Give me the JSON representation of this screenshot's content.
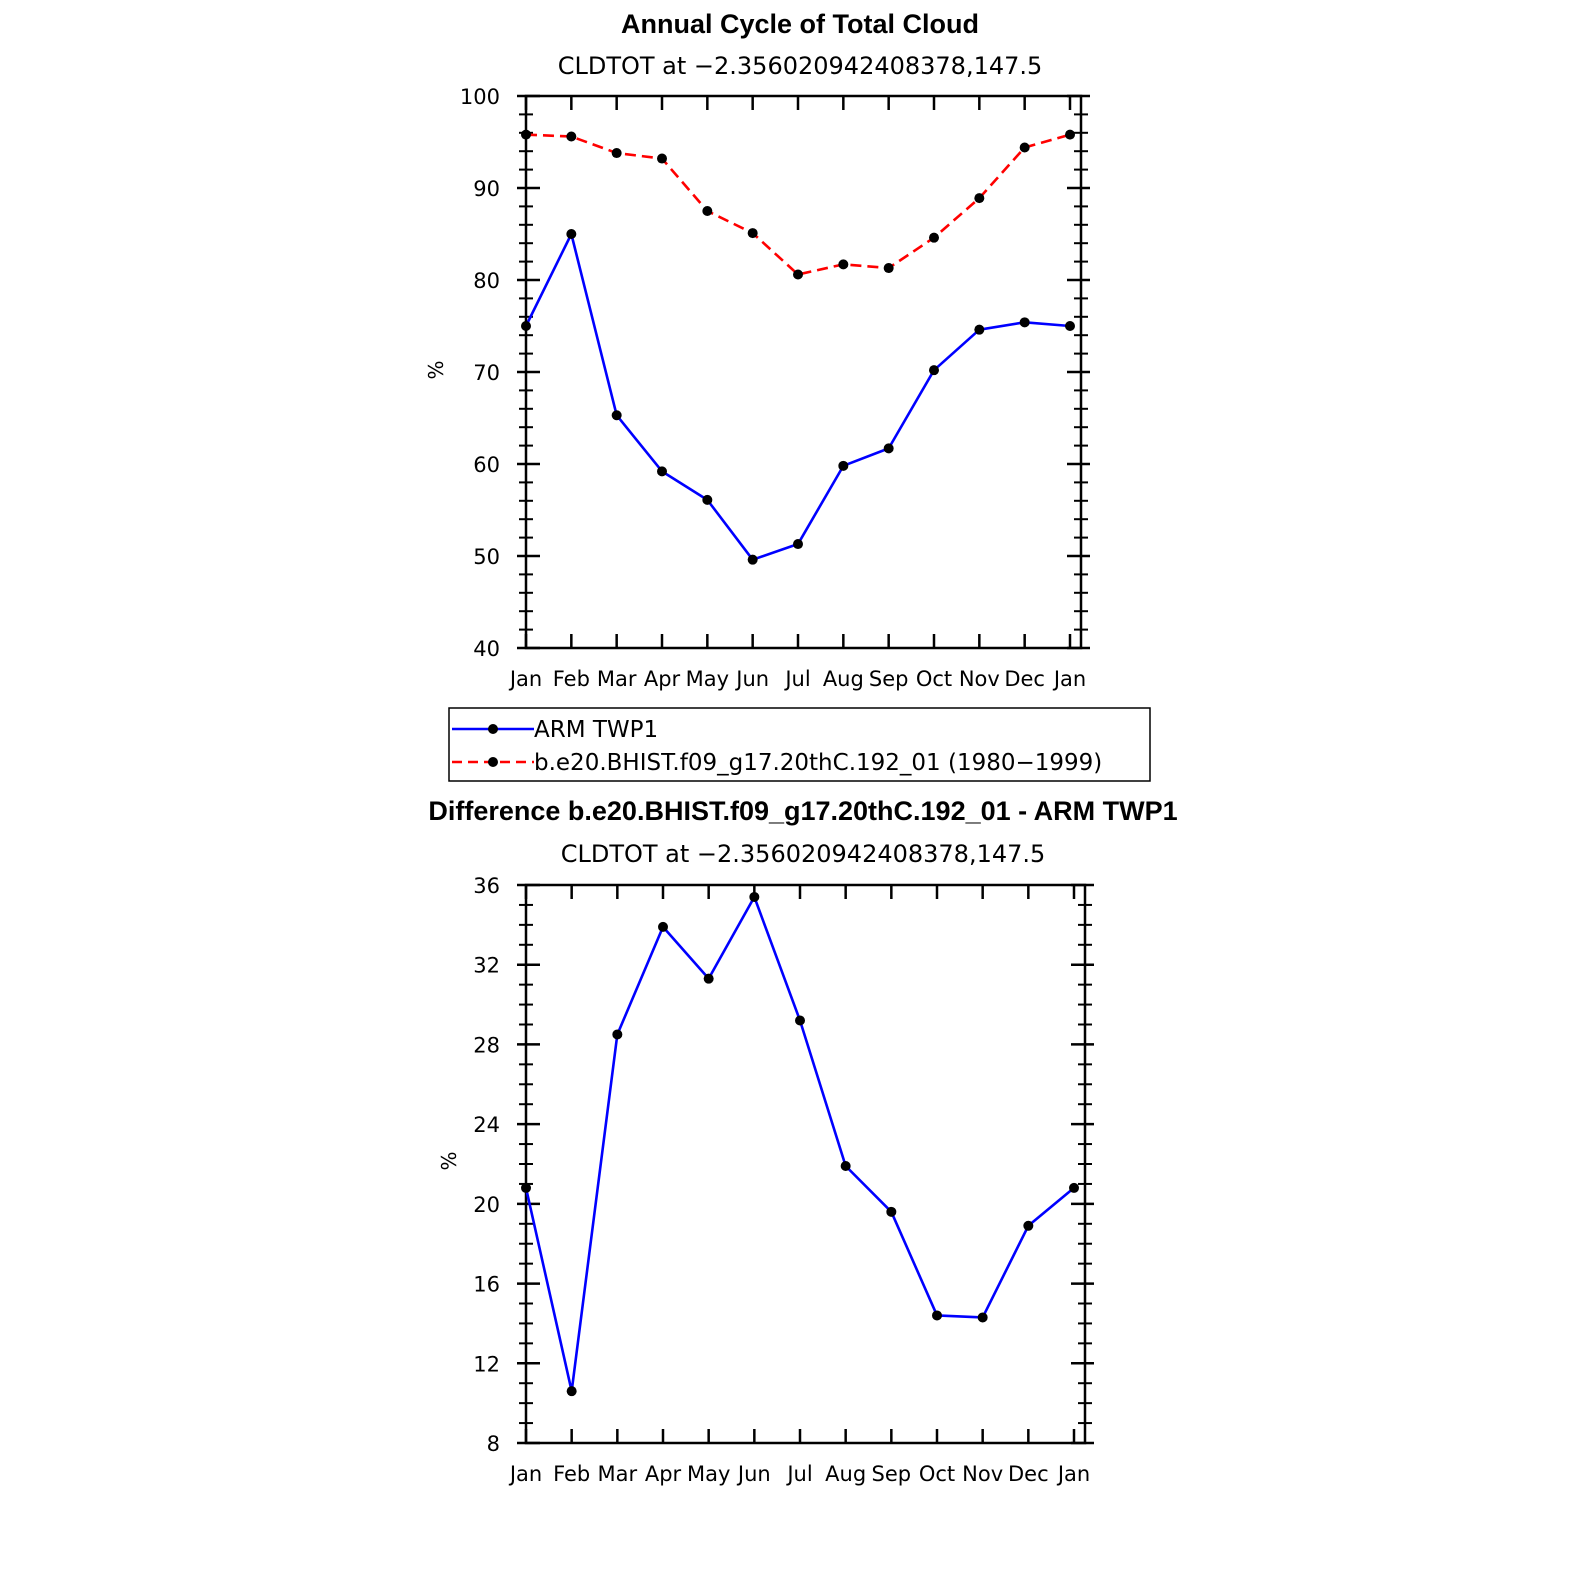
{
  "chart_data": [
    {
      "type": "line",
      "title": "Annual Cycle of Total Cloud",
      "subtitle": "CLDTOT at −2.356020942408378,147.5",
      "xlabel": "",
      "ylabel": "%",
      "categories": [
        "Jan",
        "Feb",
        "Mar",
        "Apr",
        "May",
        "Jun",
        "Jul",
        "Aug",
        "Sep",
        "Oct",
        "Nov",
        "Dec",
        "Jan"
      ],
      "ylim": [
        40,
        100
      ],
      "yticks": [
        40,
        50,
        60,
        70,
        80,
        90,
        100
      ],
      "series": [
        {
          "name": "ARM TWP1",
          "color": "#0000ff",
          "dash": "solid",
          "values": [
            75.0,
            85.0,
            65.3,
            59.2,
            56.1,
            49.6,
            51.3,
            59.8,
            61.7,
            70.2,
            74.6,
            75.4,
            75.0
          ]
        },
        {
          "name": "b.e20.BHIST.f09_g17.20thC.192_01 (1980−1999)",
          "color": "#ff0000",
          "dash": "dashed",
          "values": [
            95.8,
            95.6,
            93.8,
            93.2,
            87.5,
            85.1,
            80.6,
            81.7,
            81.3,
            84.6,
            88.9,
            94.4,
            95.8
          ]
        }
      ],
      "legend": [
        "ARM TWP1",
        "b.e20.BHIST.f09_g17.20thC.192_01 (1980−1999)"
      ]
    },
    {
      "type": "line",
      "title": "Difference b.e20.BHIST.f09_g17.20thC.192_01 - ARM TWP1",
      "subtitle": "CLDTOT at −2.356020942408378,147.5",
      "xlabel": "",
      "ylabel": "%",
      "categories": [
        "Jan",
        "Feb",
        "Mar",
        "Apr",
        "May",
        "Jun",
        "Jul",
        "Aug",
        "Sep",
        "Oct",
        "Nov",
        "Dec",
        "Jan"
      ],
      "ylim": [
        8,
        36
      ],
      "yticks": [
        8,
        12,
        16,
        20,
        24,
        28,
        32,
        36
      ],
      "series": [
        {
          "name": "Difference",
          "color": "#0000ff",
          "dash": "solid",
          "values": [
            20.8,
            10.6,
            28.5,
            33.9,
            31.3,
            35.4,
            29.2,
            21.9,
            19.6,
            14.4,
            14.3,
            18.9,
            20.8
          ]
        }
      ]
    }
  ]
}
